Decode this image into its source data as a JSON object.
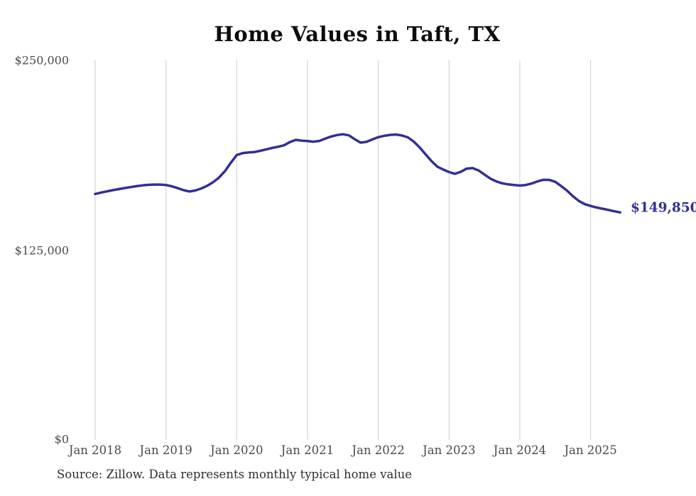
{
  "title": "Home Values in Taft, TX",
  "source_note": "Source: Zillow. Data represents monthly typical home value",
  "end_label": "$149,850",
  "colors": {
    "line": "#332f97",
    "end_label": "#332f97",
    "grid": "#cccccc",
    "axis_text": "#4a4a4a",
    "title_text": "#0d0d0d"
  },
  "chart_data": {
    "type": "line",
    "title": "Home Values in Taft, TX",
    "xlabel": "",
    "ylabel": "",
    "ylim": [
      0,
      250000
    ],
    "grid": "vertical-only",
    "legend": "none",
    "series_name": "Typical home value (monthly)",
    "final_value": 149850,
    "final_value_label": "$149,850",
    "y_ticks": [
      {
        "label": "$250,000",
        "value": 250000
      },
      {
        "label": "$125,000",
        "value": 125000
      },
      {
        "label": "$0",
        "value": 0
      }
    ],
    "x_tick_labels": [
      "Jan 2018",
      "Jan 2019",
      "Jan 2020",
      "Jan 2021",
      "Jan 2022",
      "Jan 2023",
      "Jan 2024",
      "Jan 2025"
    ],
    "x": [
      "2018-01",
      "2018-02",
      "2018-03",
      "2018-04",
      "2018-05",
      "2018-06",
      "2018-07",
      "2018-08",
      "2018-09",
      "2018-10",
      "2018-11",
      "2018-12",
      "2019-01",
      "2019-02",
      "2019-03",
      "2019-04",
      "2019-05",
      "2019-06",
      "2019-07",
      "2019-08",
      "2019-09",
      "2019-10",
      "2019-11",
      "2019-12",
      "2020-01",
      "2020-02",
      "2020-03",
      "2020-04",
      "2020-05",
      "2020-06",
      "2020-07",
      "2020-08",
      "2020-09",
      "2020-10",
      "2020-11",
      "2020-12",
      "2021-01",
      "2021-02",
      "2021-03",
      "2021-04",
      "2021-05",
      "2021-06",
      "2021-07",
      "2021-08",
      "2021-09",
      "2021-10",
      "2021-11",
      "2021-12",
      "2022-01",
      "2022-02",
      "2022-03",
      "2022-04",
      "2022-05",
      "2022-06",
      "2022-07",
      "2022-08",
      "2022-09",
      "2022-10",
      "2022-11",
      "2022-12",
      "2023-01",
      "2023-02",
      "2023-03",
      "2023-04",
      "2023-05",
      "2023-06",
      "2023-07",
      "2023-08",
      "2023-09",
      "2023-10",
      "2023-11",
      "2023-12",
      "2024-01",
      "2024-02",
      "2024-03",
      "2024-04",
      "2024-05",
      "2024-06",
      "2024-07",
      "2024-08",
      "2024-09",
      "2024-10",
      "2024-11",
      "2024-12",
      "2025-01",
      "2025-02",
      "2025-03",
      "2025-04",
      "2025-05",
      "2025-06"
    ],
    "values": [
      162000,
      162900,
      163700,
      164500,
      165200,
      165900,
      166500,
      167100,
      167600,
      168000,
      168200,
      168200,
      167900,
      167000,
      165800,
      164500,
      163600,
      164300,
      165600,
      167400,
      169700,
      172800,
      177000,
      182500,
      187600,
      188900,
      189300,
      189600,
      190400,
      191300,
      192300,
      193100,
      194000,
      196100,
      197600,
      197100,
      196800,
      196400,
      196900,
      198400,
      199800,
      200800,
      201300,
      200600,
      198100,
      195800,
      196300,
      197900,
      199400,
      200300,
      200900,
      201100,
      200500,
      199300,
      196500,
      192700,
      188200,
      183700,
      180000,
      178100,
      176400,
      175300,
      176600,
      178700,
      179000,
      177500,
      174800,
      172100,
      170300,
      169000,
      168300,
      167900,
      167500,
      167900,
      168900,
      170300,
      171300,
      171200,
      170000,
      167200,
      164200,
      160500,
      157400,
      155300,
      154100,
      153100,
      152300,
      151500,
      150600,
      149850
    ]
  }
}
